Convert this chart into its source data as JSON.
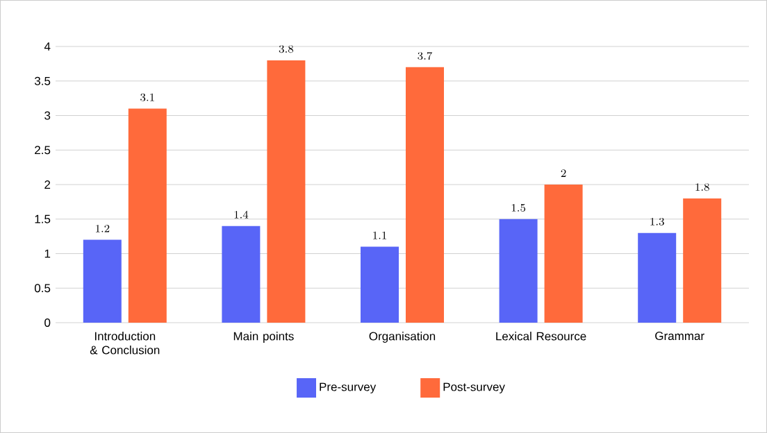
{
  "chart_data": {
    "type": "bar",
    "categories": [
      "Introduction & Conclusion",
      "Main points",
      "Organisation",
      "Lexical Resource",
      "Grammar"
    ],
    "series": [
      {
        "name": "Pre-survey",
        "color": "#5865f7",
        "values": [
          1.2,
          1.4,
          1.1,
          1.5,
          1.3
        ]
      },
      {
        "name": "Post-survey",
        "color": "#ff6a3b",
        "values": [
          3.1,
          3.8,
          3.7,
          2,
          1.8
        ]
      }
    ],
    "ylim": [
      0,
      4
    ],
    "yticks": [
      0,
      0.5,
      1,
      1.5,
      2,
      2.5,
      3,
      3.5,
      4
    ],
    "grid": "y",
    "legend": "bottom",
    "data_labels": true
  }
}
